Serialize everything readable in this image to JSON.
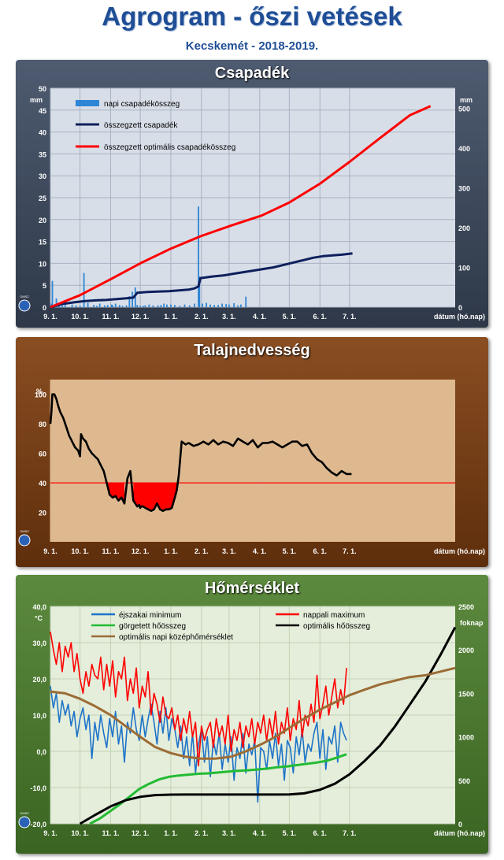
{
  "header": {
    "title": "Agrogram - őszi vetések",
    "subtitle": "Kecskemét - 2018-2019."
  },
  "xaxis": {
    "ticks": [
      "9. 1.",
      "10. 1.",
      "11. 1.",
      "12. 1.",
      "1. 1.",
      "2. 1.",
      "3. 1.",
      "4. 1.",
      "5. 1.",
      "6. 1.",
      "7. 1."
    ],
    "label": "dátum (hó.nap)"
  },
  "logo_text": "OMSZ",
  "chart_data": [
    {
      "type": "bar",
      "title": "Csapadék",
      "ylabel": "mm",
      "y2label": "mm",
      "ylim": [
        0,
        50
      ],
      "y2lim": [
        0,
        550
      ],
      "yticks": [
        0,
        5,
        10,
        15,
        20,
        25,
        30,
        35,
        40,
        45,
        50
      ],
      "y2ticks": [
        0,
        100,
        200,
        300,
        400,
        500
      ],
      "series": [
        {
          "name": "napi csapadékösszeg",
          "kind": "bar",
          "axis": "left",
          "x": [
            1,
            2,
            6,
            8,
            9,
            12,
            15,
            22,
            26,
            30,
            34,
            38,
            44,
            47,
            50,
            55,
            58,
            62,
            63,
            66,
            70,
            73,
            77,
            80,
            83,
            86,
            88,
            91,
            94,
            96,
            100,
            104,
            109,
            112,
            115,
            118,
            122,
            126,
            131,
            136,
            141,
            146,
            150,
            151,
            154,
            158,
            162,
            166,
            170,
            174,
            178,
            181,
            186,
            190,
            193,
            198
          ],
          "values": [
            0.8,
            6.0,
            2.0,
            0.3,
            0.5,
            0.4,
            0.5,
            0.6,
            0.4,
            0.3,
            7.8,
            1.0,
            0.5,
            0.3,
            0.8,
            0.4,
            0.5,
            0.6,
            0.4,
            0.8,
            0.5,
            0.3,
            0.4,
            2.5,
            3.5,
            4.5,
            0.5,
            0.3,
            0.3,
            0.4,
            0.6,
            0.4,
            0.4,
            0.5,
            0.8,
            0.6,
            0.6,
            0.5,
            0.3,
            0.6,
            0.4,
            0.8,
            23.0,
            7.0,
            0.8,
            1.0,
            0.6,
            0.5,
            0.5,
            0.8,
            0.7,
            0.6,
            0.9,
            0.4,
            0.6,
            2.4
          ]
        },
        {
          "name": "összegzett csapadék",
          "kind": "line",
          "axis": "right",
          "color": "#0d1f5c",
          "x": [
            0,
            12,
            24,
            34,
            46,
            56,
            66,
            76,
            84,
            88,
            98,
            108,
            120,
            130,
            140,
            146,
            150,
            152,
            164,
            176,
            186,
            196,
            206,
            216,
            226,
            236,
            246,
            256,
            266,
            276,
            286,
            296,
            306
          ],
          "values": [
            0,
            8,
            12,
            15,
            17,
            18,
            20,
            22,
            24,
            36,
            38,
            39,
            40,
            42,
            44,
            47,
            52,
            73,
            77,
            80,
            84,
            88,
            92,
            96,
            100,
            106,
            112,
            118,
            124,
            128,
            130,
            132,
            135
          ]
        },
        {
          "name": "összegzett optimális csapadékösszeg",
          "kind": "line",
          "axis": "right",
          "color": "#ff0000",
          "x": [
            0,
            30,
            61,
            91,
            122,
            152,
            183,
            214,
            242,
            273,
            303,
            334,
            364,
            385
          ],
          "values": [
            0,
            30,
            70,
            110,
            147,
            178,
            205,
            230,
            263,
            310,
            365,
            425,
            482,
            505
          ]
        }
      ]
    },
    {
      "type": "line",
      "title": "Talajnedvesség",
      "ylabel": "%",
      "ylim": [
        0,
        110
      ],
      "yticks": [
        20,
        40,
        60,
        80,
        100
      ],
      "threshold": 40,
      "series": [
        {
          "name": "",
          "color": "#000000",
          "x": [
            0,
            1,
            2,
            4,
            6,
            8,
            10,
            13,
            16,
            19,
            22,
            25,
            28,
            30,
            31,
            33,
            36,
            39,
            42,
            45,
            48,
            51,
            54,
            57,
            60,
            63,
            66,
            69,
            72,
            75,
            78,
            81,
            84,
            86,
            88,
            90,
            91,
            92,
            94,
            96,
            99,
            102,
            105,
            108,
            111,
            114,
            117,
            120,
            123,
            126,
            128,
            130,
            133,
            135,
            137,
            140,
            145,
            150,
            155,
            160,
            165,
            170,
            175,
            180,
            185,
            190,
            195,
            200,
            205,
            210,
            215,
            220,
            225,
            230,
            235,
            240,
            245,
            250,
            255,
            260,
            265,
            270,
            275,
            280,
            285,
            290,
            295,
            300,
            305
          ],
          "values": [
            80,
            88,
            100,
            100,
            97,
            92,
            88,
            84,
            78,
            72,
            68,
            64,
            62,
            58,
            73,
            70,
            68,
            63,
            60,
            58,
            56,
            52,
            48,
            40,
            32,
            30,
            31,
            28,
            30,
            26,
            43,
            48,
            28,
            26,
            24,
            25,
            23,
            24,
            24,
            23,
            22,
            21,
            22,
            26,
            22,
            21,
            22,
            22,
            23,
            30,
            35,
            45,
            68,
            67,
            66,
            67,
            65,
            66,
            68,
            66,
            69,
            66,
            68,
            67,
            65,
            70,
            68,
            66,
            69,
            64,
            67,
            67,
            68,
            66,
            64,
            66,
            68,
            68,
            65,
            66,
            60,
            56,
            54,
            50,
            47,
            45,
            48,
            46,
            46
          ]
        }
      ]
    },
    {
      "type": "line",
      "title": "Hőmérséklet",
      "ylabel": "°C",
      "y2label": "foknap",
      "ylim": [
        -20,
        40
      ],
      "y2lim": [
        0,
        2500
      ],
      "yticks": [
        -20,
        -10,
        0,
        10,
        20,
        30,
        40
      ],
      "ytick_labels": [
        "-20,0",
        "-10,0",
        "0,0",
        "10,0",
        "20,0",
        "30,0",
        "40,0"
      ],
      "y2ticks": [
        0,
        500,
        1000,
        1500,
        2000,
        2500
      ],
      "series": [
        {
          "name": "éjszakai minimum",
          "axis": "left",
          "color": "#1e73c8",
          "x": [
            0,
            3,
            6,
            9,
            12,
            15,
            18,
            21,
            24,
            27,
            30,
            33,
            36,
            39,
            42,
            45,
            48,
            51,
            54,
            57,
            60,
            63,
            66,
            69,
            72,
            75,
            78,
            81,
            84,
            87,
            90,
            93,
            96,
            99,
            102,
            105,
            108,
            111,
            114,
            117,
            120,
            123,
            126,
            129,
            132,
            135,
            138,
            141,
            144,
            147,
            150,
            153,
            156,
            159,
            162,
            165,
            168,
            171,
            174,
            177,
            180,
            183,
            186,
            189,
            192,
            195,
            198,
            201,
            204,
            207,
            210,
            213,
            216,
            219,
            222,
            225,
            228,
            231,
            234,
            237,
            240,
            243,
            246,
            249,
            252,
            255,
            258,
            261,
            264,
            267,
            270,
            273,
            276,
            279,
            282,
            285,
            288,
            291,
            294,
            297,
            300
          ],
          "values": [
            18,
            12,
            16,
            8,
            14,
            10,
            13,
            7,
            11,
            4,
            9,
            12,
            6,
            10,
            -2,
            8,
            3,
            10,
            5,
            1,
            9,
            4,
            11,
            2,
            7,
            -3,
            8,
            5,
            12,
            6,
            3,
            10,
            4,
            9,
            13,
            8,
            2,
            11,
            5,
            12,
            3,
            9,
            6,
            1,
            7,
            -2,
            4,
            -4,
            5,
            -6,
            2,
            6,
            -3,
            4,
            -7,
            3,
            -1,
            5,
            -5,
            2,
            -3,
            4,
            -8,
            1,
            -2,
            5,
            -6,
            2,
            -1,
            3,
            -14,
            1,
            0,
            -5,
            3,
            -2,
            5,
            -4,
            2,
            -8,
            3,
            1,
            -6,
            4,
            -1,
            6,
            -3,
            2,
            0,
            5,
            8,
            -2,
            6,
            -5,
            4,
            2,
            7,
            -3,
            8,
            5,
            3
          ]
        },
        {
          "name": "nappali maximum",
          "axis": "left",
          "color": "#ff0000",
          "x": [
            0,
            3,
            6,
            9,
            12,
            15,
            18,
            21,
            24,
            27,
            30,
            33,
            36,
            39,
            42,
            45,
            48,
            51,
            54,
            57,
            60,
            63,
            66,
            69,
            72,
            75,
            78,
            81,
            84,
            87,
            90,
            93,
            96,
            99,
            102,
            105,
            108,
            111,
            114,
            117,
            120,
            123,
            126,
            129,
            132,
            135,
            138,
            141,
            144,
            147,
            150,
            153,
            156,
            159,
            162,
            165,
            168,
            171,
            174,
            177,
            180,
            183,
            186,
            189,
            192,
            195,
            198,
            201,
            204,
            207,
            210,
            213,
            216,
            219,
            222,
            225,
            228,
            231,
            234,
            237,
            240,
            243,
            246,
            249,
            252,
            255,
            258,
            261,
            264,
            267,
            270,
            273,
            276,
            279,
            282,
            285,
            288,
            291,
            294,
            297,
            300
          ],
          "values": [
            33,
            28,
            24,
            30,
            22,
            29,
            26,
            30,
            22,
            27,
            20,
            16,
            22,
            18,
            24,
            21,
            20,
            26,
            17,
            24,
            18,
            25,
            15,
            22,
            20,
            26,
            14,
            20,
            16,
            23,
            12,
            18,
            15,
            22,
            10,
            16,
            13,
            8,
            15,
            10,
            9,
            12,
            6,
            10,
            3,
            9,
            5,
            11,
            4,
            8,
            -4,
            7,
            3,
            6,
            8,
            1,
            9,
            4,
            7,
            2,
            10,
            0,
            6,
            3,
            8,
            1,
            7,
            4,
            9,
            2,
            8,
            5,
            10,
            3,
            9,
            4,
            11,
            2,
            8,
            5,
            12,
            3,
            9,
            6,
            14,
            4,
            10,
            7,
            13,
            8,
            21,
            9,
            13,
            18,
            10,
            15,
            20,
            12,
            17,
            13,
            23
          ]
        },
        {
          "name": "görgetett hőösszeg",
          "axis": "right",
          "color": "#22bb33",
          "x": [
            40,
            50,
            60,
            70,
            80,
            90,
            100,
            110,
            120,
            130,
            140,
            150,
            160,
            170,
            180,
            190,
            200,
            210,
            220,
            230,
            240,
            250,
            260,
            270,
            280,
            290,
            300
          ],
          "values": [
            0,
            60,
            140,
            220,
            310,
            400,
            460,
            510,
            540,
            555,
            565,
            575,
            580,
            590,
            600,
            610,
            615,
            625,
            635,
            650,
            660,
            675,
            690,
            705,
            725,
            760,
            800
          ]
        },
        {
          "name": "optimális hőösszeg",
          "axis": "right",
          "color": "#000000",
          "x": [
            30,
            45,
            61,
            76,
            91,
            106,
            122,
            137,
            152,
            183,
            214,
            228,
            242,
            257,
            273,
            288,
            303,
            318,
            334,
            349,
            364,
            380,
            395,
            410
          ],
          "values": [
            0,
            100,
            200,
            270,
            310,
            330,
            335,
            336,
            336,
            336,
            336,
            336,
            338,
            350,
            390,
            460,
            570,
            720,
            900,
            1120,
            1370,
            1640,
            1940,
            2260
          ]
        },
        {
          "name": "optimális napi középhőmérséklet",
          "axis": "left",
          "color": "#9c6b35",
          "x": [
            0,
            15,
            30,
            45,
            61,
            76,
            91,
            106,
            122,
            137,
            152,
            167,
            183,
            198,
            214,
            228,
            242,
            257,
            273,
            288,
            303,
            318,
            334,
            349,
            364,
            380,
            395,
            410
          ],
          "values": [
            16.5,
            16,
            14.5,
            12.5,
            10,
            7,
            4,
            1.2,
            -0.5,
            -1.5,
            -2,
            -2,
            -1.5,
            0,
            2,
            4,
            6.5,
            9,
            11.5,
            13.5,
            15.5,
            17,
            18.5,
            19.5,
            20.5,
            21,
            22,
            23
          ]
        }
      ]
    }
  ]
}
